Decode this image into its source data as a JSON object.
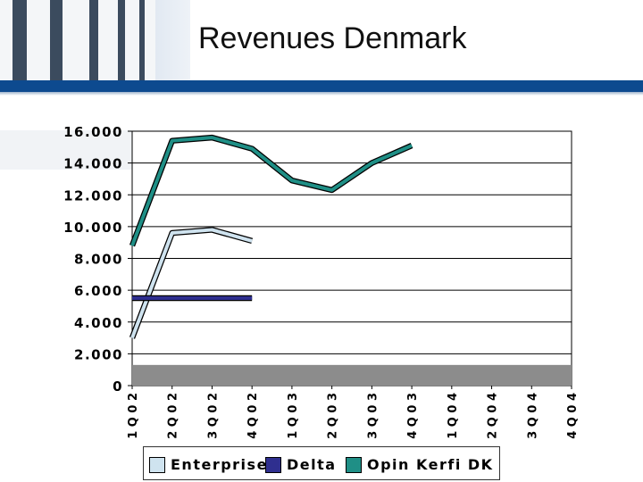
{
  "slide": {
    "title": "Revenues Denmark"
  },
  "chart_data": {
    "type": "line",
    "categories": [
      "1Q02",
      "2Q02",
      "3Q02",
      "4Q02",
      "1Q03",
      "2Q03",
      "3Q03",
      "4Q03",
      "1Q04",
      "2Q04",
      "3Q04",
      "4Q04"
    ],
    "ylim": [
      0,
      16000
    ],
    "yticks": [
      0,
      2000,
      4000,
      6000,
      8000,
      10000,
      12000,
      14000,
      16000
    ],
    "ytick_labels": [
      "0",
      "2.000",
      "4.000",
      "6.000",
      "8.000",
      "10.000",
      "12.000",
      "14.000",
      "16.000"
    ],
    "xtick_labels": [
      "1 Q 0 2",
      "2 Q 0 2",
      "3 Q 0 2",
      "4 Q 0 2",
      "1 Q 0 3",
      "2 Q 0 3",
      "3 Q 0 3",
      "4 Q 0 3",
      "1 Q 0 4",
      "2 Q 0 4",
      "3 Q 0 4",
      "4 Q 0 4"
    ],
    "grid": true,
    "legend_position": "bottom",
    "series": [
      {
        "name": "Enterprise",
        "color": "#cfe3ef",
        "values": [
          3000,
          9600,
          9800,
          9100,
          null,
          null,
          null,
          null,
          null,
          null,
          null,
          null
        ]
      },
      {
        "name": "Delta",
        "color": "#2f2f8f",
        "values": [
          5500,
          5500,
          5500,
          5500,
          null,
          null,
          null,
          null,
          null,
          null,
          null,
          null
        ]
      },
      {
        "name": "Opin Kerfi DK",
        "color": "#1f8f86",
        "values": [
          8800,
          15400,
          15600,
          14900,
          12900,
          12300,
          14000,
          15100,
          null,
          null,
          null,
          null
        ]
      }
    ],
    "floor_band_value": 1300
  }
}
